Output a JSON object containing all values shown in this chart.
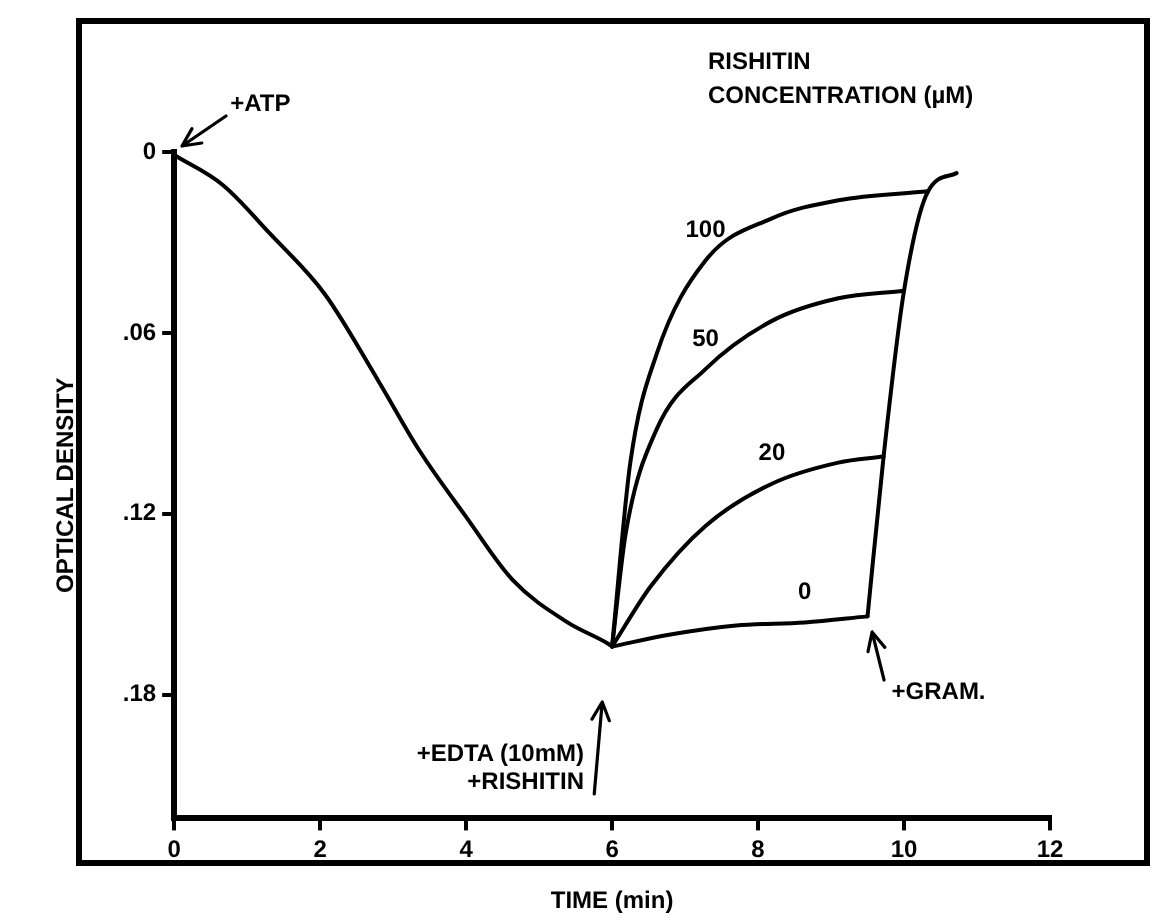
{
  "chart_data": {
    "type": "line",
    "xlabel": "TIME (min)",
    "ylabel": "OPTICAL DENSITY",
    "legend_title": "RISHITIN\nCONCENTRATION (µM)",
    "xlim": [
      0,
      12
    ],
    "xticks": [
      0,
      2,
      4,
      6,
      8,
      10,
      12
    ],
    "ylim": [
      0.221,
      0
    ],
    "yticks": [
      {
        "value": 0,
        "label": "0"
      },
      {
        "value": 0.06,
        "label": ".06"
      },
      {
        "value": 0.12,
        "label": ".12"
      },
      {
        "value": 0.18,
        "label": ".18"
      }
    ],
    "grid": false,
    "legend": false,
    "marker": "none",
    "line_style": "solid",
    "series": [
      {
        "color": "#000000",
        "x": [
          0,
          0.67,
          1.31,
          2.06,
          2.8,
          3.36,
          4,
          4.64,
          5.39,
          5.94,
          6
        ],
        "values": [
          0.001,
          0.011,
          0.027,
          0.047,
          0.076,
          0.099,
          0.121,
          0.142,
          0.156,
          0.163,
          0.164
        ]
      },
      {
        "name": "100",
        "color": "#000000",
        "x": [
          6,
          6.25,
          6.61,
          7.28,
          8.19,
          9.1,
          10.33
        ],
        "values": [
          0.164,
          0.103,
          0.067,
          0.036,
          0.022,
          0.016,
          0.013
        ]
      },
      {
        "name": "50",
        "color": "#000000",
        "x": [
          6,
          6.19,
          6.61,
          7.28,
          8.19,
          9.1,
          10.0
        ],
        "values": [
          0.164,
          0.126,
          0.092,
          0.072,
          0.056,
          0.0485,
          0.046
        ]
      },
      {
        "name": "20",
        "color": "#000000",
        "x": [
          6,
          6.53,
          7.28,
          8.19,
          9.1,
          9.72
        ],
        "values": [
          0.164,
          0.144,
          0.124,
          0.11,
          0.103,
          0.101
        ]
      },
      {
        "name": "0",
        "color": "#000000",
        "x": [
          6,
          6.8,
          7.7,
          8.64,
          9.5
        ],
        "values": [
          0.164,
          0.16,
          0.157,
          0.156,
          0.154
        ]
      },
      {
        "color": "#000000",
        "x": [
          9.5,
          9.72,
          10.0,
          10.33,
          10.72
        ],
        "values": [
          0.154,
          0.101,
          0.046,
          0.013,
          0.007
        ]
      }
    ],
    "annotations": [
      {
        "text": "+ATP",
        "x": 0,
        "y": 0
      },
      "+EDTA (10mM)\n+RISHITIN",
      {
        "text": "+GRAM.",
        "x": 9.5,
        "y": 0.154
      }
    ]
  }
}
